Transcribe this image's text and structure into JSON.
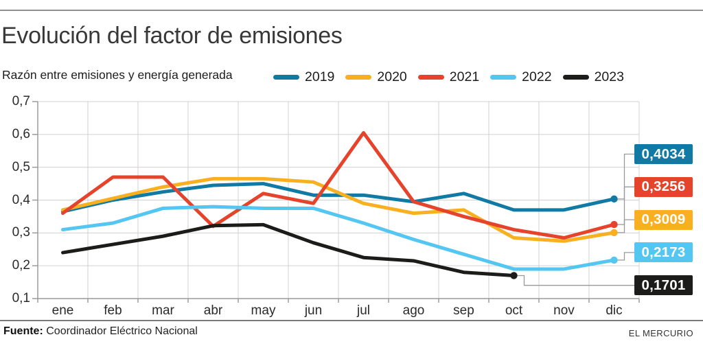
{
  "header": {
    "title": "Evolución del factor de emisiones",
    "subtitle": "Razón entre emisiones y energía generada"
  },
  "footer": {
    "source_label": "Fuente:",
    "source_text": "Coordinador Eléctrico Nacional",
    "credit": "EL MERCURIO"
  },
  "chart_data": {
    "type": "line",
    "title": "Evolución del factor de emisiones",
    "subtitle": "Razón entre emisiones y energía generada",
    "x_categories": [
      "ene",
      "feb",
      "mar",
      "abr",
      "may",
      "jun",
      "jul",
      "ago",
      "sep",
      "oct",
      "nov",
      "dic"
    ],
    "y_ticks": [
      {
        "value": 0.7,
        "label": "0,7"
      },
      {
        "value": 0.6,
        "label": "0,6"
      },
      {
        "value": 0.5,
        "label": "0,5"
      },
      {
        "value": 0.4,
        "label": "0,4"
      },
      {
        "value": 0.3,
        "label": "0,3"
      },
      {
        "value": 0.2,
        "label": "0,2"
      },
      {
        "value": 0.1,
        "label": "0,1"
      }
    ],
    "ylim": [
      0.1,
      0.7
    ],
    "grid": true,
    "legend_position": "top-right",
    "series": [
      {
        "name": "2019",
        "color": "#107aa4",
        "end_label": "0,4034",
        "values": [
          0.365,
          0.4,
          0.425,
          0.445,
          0.45,
          0.415,
          0.415,
          0.395,
          0.42,
          0.37,
          0.37,
          0.4034
        ]
      },
      {
        "name": "2020",
        "color": "#f8b021",
        "end_label": "0,3009",
        "values": [
          0.37,
          0.405,
          0.44,
          0.465,
          0.465,
          0.455,
          0.39,
          0.36,
          0.37,
          0.285,
          0.275,
          0.3009
        ]
      },
      {
        "name": "2021",
        "color": "#e6432c",
        "end_label": "0,3256",
        "values": [
          0.36,
          0.47,
          0.47,
          0.32,
          0.42,
          0.39,
          0.605,
          0.395,
          0.35,
          0.31,
          0.285,
          0.3256
        ]
      },
      {
        "name": "2022",
        "color": "#53c6f1",
        "end_label": "0,2173",
        "values": [
          0.31,
          0.33,
          0.375,
          0.38,
          0.375,
          0.375,
          0.33,
          0.28,
          0.235,
          0.19,
          0.19,
          0.2173
        ]
      },
      {
        "name": "2023",
        "color": "#1c1c1a",
        "end_label": "0,1701",
        "values": [
          0.24,
          0.265,
          0.29,
          0.322,
          0.325,
          0.27,
          0.225,
          0.215,
          0.18,
          0.1701,
          null,
          null
        ]
      }
    ]
  }
}
